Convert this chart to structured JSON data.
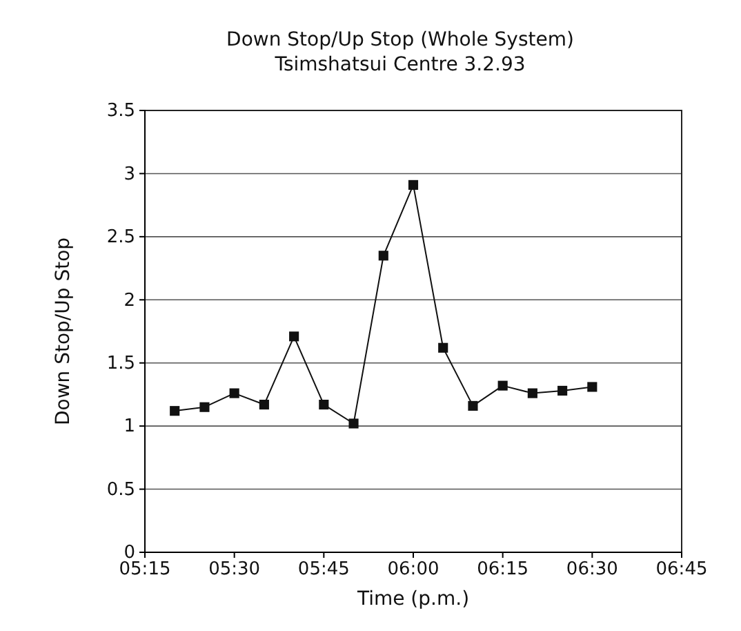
{
  "chart_data": {
    "type": "line",
    "title": "Down Stop/Up Stop (Whole System)",
    "subtitle": "Tsimshatsui Centre 3.2.93",
    "xlabel": "Time (p.m.)",
    "ylabel": "Down Stop/Up Stop",
    "x": [
      5.3333,
      5.4167,
      5.5,
      5.5833,
      5.6667,
      5.75,
      5.8333,
      5.9167,
      6,
      6.0833,
      6.1667,
      6.25,
      6.3333,
      6.4167,
      6.5
    ],
    "series": [
      {
        "color": "#111111",
        "values": [
          1.12,
          1.15,
          1.26,
          1.17,
          1.71,
          1.17,
          1.02,
          2.35,
          2.91,
          1.62,
          1.16,
          1.32,
          1.26,
          1.28,
          1.31
        ]
      }
    ],
    "xlim": [
      5.25,
      6.75
    ],
    "xticks": [
      {
        "value": 5.25,
        "label": "05:15"
      },
      {
        "value": 5.5,
        "label": "05:30"
      },
      {
        "value": 5.75,
        "label": "05:45"
      },
      {
        "value": 6,
        "label": "06:00"
      },
      {
        "value": 6.25,
        "label": "06:15"
      },
      {
        "value": 6.5,
        "label": "06:30"
      },
      {
        "value": 6.75,
        "label": "06:45"
      }
    ],
    "ylim": [
      0,
      3.5
    ],
    "yticks": [
      0,
      0.5,
      1,
      1.5,
      2,
      2.5,
      3,
      3.5
    ],
    "grid": "y",
    "marker": "square",
    "line_style": "solid"
  }
}
